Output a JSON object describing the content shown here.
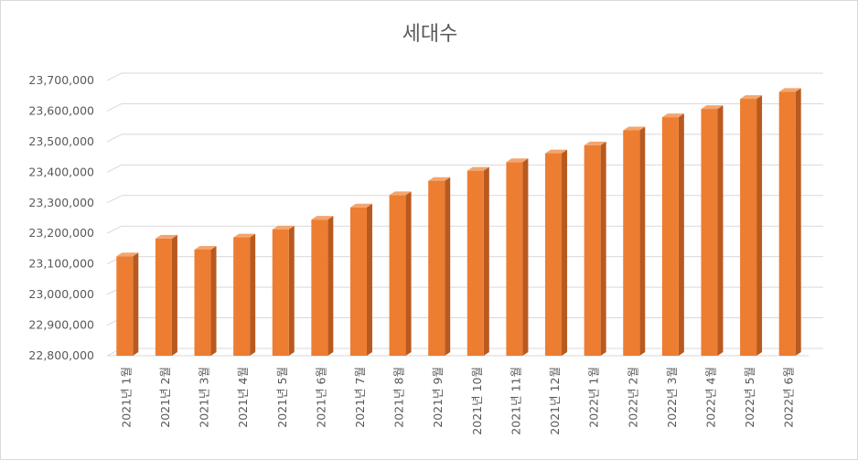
{
  "chart_data": {
    "type": "bar",
    "title": "세대수",
    "xlabel": "",
    "ylabel": "",
    "categories": [
      "2021년 1월",
      "2021년 2월",
      "2021년 3월",
      "2021년 4월",
      "2021년 5월",
      "2021년 6월",
      "2021년 7월",
      "2021년 8월",
      "2021년 9월",
      "2021년 10월",
      "2021년 11월",
      "2021년 12월",
      "2022년 1월",
      "2022년 2월",
      "2022년 3월",
      "2022년 4월",
      "2022년 5월",
      "2022년 6월"
    ],
    "values": [
      23125000,
      23183000,
      23147000,
      23187000,
      23213000,
      23245000,
      23285000,
      23325000,
      23372000,
      23405000,
      23433000,
      23462000,
      23488000,
      23537000,
      23580000,
      23607000,
      23640000,
      23663000
    ],
    "ylim": [
      22800000,
      23700000
    ],
    "yticks": [
      22800000,
      22900000,
      23000000,
      23100000,
      23200000,
      23300000,
      23400000,
      23500000,
      23600000,
      23700000
    ],
    "ytick_labels": [
      "22,800,000",
      "22,900,000",
      "23,000,000",
      "23,100,000",
      "23,200,000",
      "23,300,000",
      "23,400,000",
      "23,500,000",
      "23,600,000",
      "23,700,000"
    ],
    "grid": true,
    "legend": "none",
    "bar_color": "#ED7D31",
    "bar_side_color": "#B85A1F",
    "bar_top_color": "#F4A56E"
  }
}
